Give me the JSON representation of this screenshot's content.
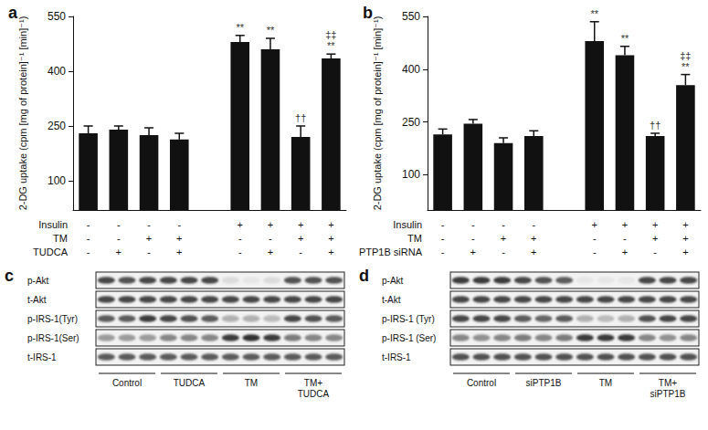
{
  "chart_data": [
    {
      "type": "bar",
      "title": "a",
      "y_label": "2-DG uptake (cpm [mg of protein]⁻¹ [min]⁻¹)",
      "categories": [
        null,
        null,
        null,
        null,
        null,
        null,
        null,
        null,
        null
      ],
      "values": [
        230,
        240,
        225,
        213,
        null,
        480,
        460,
        220,
        435
      ],
      "errors": [
        20,
        10,
        20,
        17,
        null,
        18,
        30,
        30,
        12
      ],
      "annotations": [
        null,
        null,
        null,
        null,
        null,
        [
          "**"
        ],
        [
          "**"
        ],
        [
          "††"
        ],
        [
          "‡‡",
          "**"
        ]
      ],
      "condition_rows": [
        {
          "label": "Insulin",
          "signs": [
            "-",
            "-",
            "-",
            "-",
            null,
            "+",
            "+",
            "+",
            "+"
          ]
        },
        {
          "label": "TM",
          "signs": [
            "-",
            "-",
            "+",
            "+",
            null,
            "-",
            "-",
            "+",
            "+"
          ]
        },
        {
          "label": "TUDCA",
          "signs": [
            "-",
            "+",
            "-",
            "+",
            null,
            "-",
            "+",
            "-",
            "+"
          ]
        }
      ],
      "color": "#111111",
      "ylim": [
        20,
        550
      ],
      "yticks": [
        100,
        250,
        400,
        550
      ],
      "grid": false
    },
    {
      "type": "bar",
      "title": "b",
      "y_label": "2-DG uptake (cpm [mg of protein]⁻¹ [min]⁻¹)",
      "categories": [
        null,
        null,
        null,
        null,
        null,
        null,
        null,
        null,
        null
      ],
      "values": [
        215,
        245,
        190,
        210,
        null,
        480,
        440,
        210,
        355
      ],
      "errors": [
        15,
        12,
        15,
        15,
        null,
        55,
        25,
        8,
        30
      ],
      "annotations": [
        null,
        null,
        null,
        null,
        null,
        [
          "**"
        ],
        [
          "**"
        ],
        [
          "††"
        ],
        [
          "‡‡",
          "**"
        ]
      ],
      "condition_rows": [
        {
          "label": "Insulin",
          "signs": [
            "-",
            "-",
            "-",
            "-",
            null,
            "+",
            "+",
            "+",
            "+"
          ]
        },
        {
          "label": "TM",
          "signs": [
            "-",
            "-",
            "+",
            "+",
            null,
            "-",
            "-",
            "+",
            "+"
          ]
        },
        {
          "label": "PTP1B siRNA",
          "signs": [
            "-",
            "+",
            "-",
            "+",
            null,
            "-",
            "+",
            "-",
            "+"
          ]
        }
      ],
      "color": "#111111",
      "ylim": [
        0,
        550
      ],
      "yticks": [
        100,
        250,
        400,
        550
      ],
      "grid": false
    }
  ],
  "blots": [
    {
      "title": "c",
      "rows": [
        {
          "label": "p-Akt",
          "bands": [
            0.8,
            0.75,
            0.8,
            0.8,
            0.8,
            0.8,
            0.1,
            0.05,
            0.1,
            0.75,
            0.75,
            0.75
          ]
        },
        {
          "label": "t-Akt",
          "bands": [
            0.8,
            0.8,
            0.8,
            0.8,
            0.8,
            0.8,
            0.8,
            0.8,
            0.8,
            0.8,
            0.8,
            0.8
          ]
        },
        {
          "label": "p-IRS-1(Tyr)",
          "bands": [
            0.7,
            0.7,
            0.85,
            0.8,
            0.75,
            0.7,
            0.3,
            0.3,
            0.25,
            0.8,
            0.75,
            0.7
          ]
        },
        {
          "label": "p-IRS-1(Ser)",
          "bands": [
            0.4,
            0.4,
            0.4,
            0.5,
            0.5,
            0.5,
            0.85,
            0.9,
            0.85,
            0.55,
            0.5,
            0.5
          ]
        },
        {
          "label": "t-IRS-1",
          "bands": [
            0.7,
            0.7,
            0.7,
            0.7,
            0.7,
            0.7,
            0.7,
            0.7,
            0.7,
            0.7,
            0.7,
            0.7
          ]
        }
      ],
      "groups": [
        "Control",
        "TUDCA",
        "TM",
        "TM+\nTUDCA"
      ]
    },
    {
      "title": "d",
      "rows": [
        {
          "label": "p-Akt",
          "bands": [
            0.85,
            0.85,
            0.85,
            0.8,
            0.75,
            0.7,
            0.05,
            0.05,
            0.05,
            0.8,
            0.8,
            0.8
          ]
        },
        {
          "label": "t-Akt",
          "bands": [
            0.8,
            0.8,
            0.8,
            0.8,
            0.8,
            0.8,
            0.8,
            0.8,
            0.8,
            0.8,
            0.8,
            0.8
          ]
        },
        {
          "label": "p-IRS-1 (Tyr)",
          "bands": [
            0.8,
            0.8,
            0.8,
            0.7,
            0.65,
            0.7,
            0.3,
            0.25,
            0.3,
            0.75,
            0.8,
            0.8
          ]
        },
        {
          "label": "p-IRS-1 (Ser)",
          "bands": [
            0.5,
            0.45,
            0.5,
            0.55,
            0.5,
            0.55,
            0.85,
            0.85,
            0.85,
            0.5,
            0.45,
            0.5
          ]
        },
        {
          "label": "t-IRS-1",
          "bands": [
            0.75,
            0.75,
            0.75,
            0.75,
            0.75,
            0.75,
            0.75,
            0.75,
            0.75,
            0.75,
            0.75,
            0.75
          ]
        }
      ],
      "groups": [
        "Control",
        "siPTP1B",
        "TM",
        "TM+\nsiPTP1B"
      ]
    }
  ]
}
